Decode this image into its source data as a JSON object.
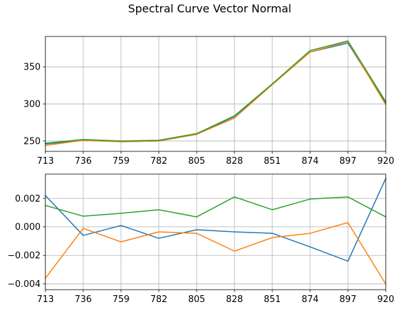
{
  "chart_data": {
    "title": "Spectral Curve Vector Normal",
    "type": "line",
    "panels": [
      {
        "type": "line",
        "x": [
          713,
          736,
          759,
          782,
          805,
          828,
          851,
          874,
          897,
          920
        ],
        "xlim": [
          713,
          920
        ],
        "ylim": [
          236,
          391
        ],
        "xticks": [
          713,
          736,
          759,
          782,
          805,
          828,
          851,
          874,
          897,
          920
        ],
        "yticks": [
          250,
          300,
          350
        ],
        "ytick_labels": [
          "250",
          "300",
          "350"
        ],
        "grid": true,
        "series": [
          {
            "color": "#1f77b4",
            "values": [
              246,
              251,
              249,
              250,
              259,
              283,
              327,
              370,
              382,
              301
            ]
          },
          {
            "color": "#ff7f0e",
            "values": [
              244,
              251,
              249,
              250,
              259,
              281,
              326,
              370,
              384,
              299
            ]
          },
          {
            "color": "#2ca02c",
            "values": [
              247,
              252,
              250,
              251,
              260,
              284,
              327,
              372,
              385,
              303
            ]
          }
        ]
      },
      {
        "type": "line",
        "x": [
          713,
          736,
          759,
          782,
          805,
          828,
          851,
          874,
          897,
          920
        ],
        "xlim": [
          713,
          920
        ],
        "ylim": [
          -0.0044,
          0.0037
        ],
        "xticks": [
          713,
          736,
          759,
          782,
          805,
          828,
          851,
          874,
          897,
          920
        ],
        "yticks": [
          -0.004,
          -0.002,
          0.0,
          0.002
        ],
        "ytick_labels": [
          "−0.004",
          "−0.002",
          "0.000",
          "0.002"
        ],
        "grid": true,
        "series": [
          {
            "color": "#1f77b4",
            "values": [
              0.0022,
              -0.0006,
              0.0001,
              -0.0008,
              -0.0002,
              -0.00035,
              -0.00045,
              -0.0014,
              -0.0024,
              0.0034
            ]
          },
          {
            "color": "#ff7f0e",
            "values": [
              -0.0036,
              -0.0001,
              -0.00105,
              -0.00035,
              -0.00045,
              -0.0017,
              -0.00075,
              -0.00045,
              0.0003,
              -0.004
            ]
          },
          {
            "color": "#2ca02c",
            "values": [
              0.0015,
              0.00075,
              0.00095,
              0.0012,
              0.0007,
              0.0021,
              0.0012,
              0.00195,
              0.0021,
              0.0007
            ]
          }
        ]
      }
    ]
  }
}
